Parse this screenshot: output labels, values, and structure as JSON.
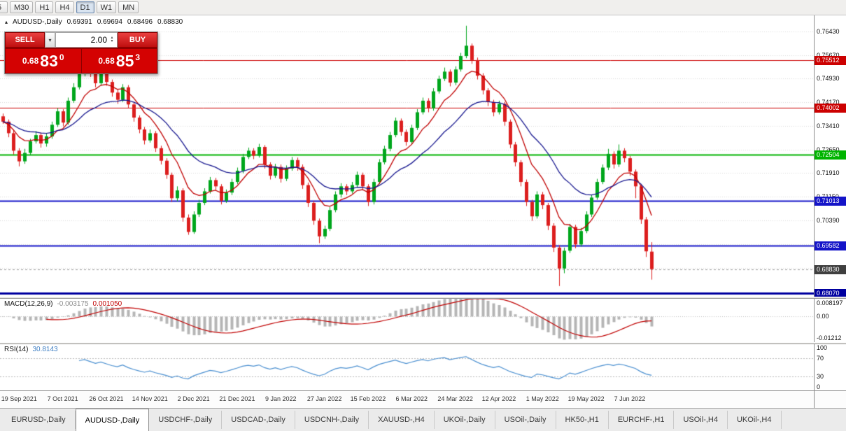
{
  "colors": {
    "bull": "#00a61c",
    "bear": "#dc1e1e",
    "ma_fast": "#c00000",
    "ma_slow": "#17178f",
    "macd_hist": "#b5b5b5",
    "macd_signal": "#c00000",
    "rsi_line": "#4a8fd0",
    "grid": "#dadada",
    "current_chip": "#3f3f3f"
  },
  "toolbar": {
    "timeframes": [
      {
        "label": "5",
        "active": false
      },
      {
        "label": "M30",
        "active": false
      },
      {
        "label": "H1",
        "active": false
      },
      {
        "label": "H4",
        "active": false
      },
      {
        "label": "D1",
        "active": true
      },
      {
        "label": "W1",
        "active": false
      },
      {
        "label": "MN",
        "active": false
      }
    ]
  },
  "symbol_line": {
    "icon": "▴",
    "title": "AUDUSD-,Daily",
    "open": "0.69391",
    "high": "0.69694",
    "low": "0.68496",
    "close": "0.68830"
  },
  "trade_panel": {
    "sell_label": "SELL",
    "buy_label": "BUY",
    "volume": "2.00",
    "sell_price_prefix": "0.68",
    "sell_price_big": "83",
    "sell_price_sup": "0",
    "buy_price_prefix": "0.68",
    "buy_price_big": "85",
    "buy_price_sup": "3"
  },
  "price_axis": {
    "ticks": [
      "0.76430",
      "0.75670",
      "0.74930",
      "0.74170",
      "0.73410",
      "0.72650",
      "0.71910",
      "0.71150",
      "0.70390"
    ]
  },
  "macd": {
    "label": "MACD(12,26,9)",
    "main_value": "-0.003175",
    "signal_value": "0.001050",
    "axis_labels": [
      "0.008197",
      "0.00",
      "-0.01212"
    ],
    "range": [
      -0.01212,
      0.008197
    ],
    "fast": 12,
    "slow": 26,
    "signal": 9
  },
  "rsi": {
    "label": "RSI(14)",
    "value": "30.8143",
    "axis_labels": [
      "100",
      "70",
      "30",
      "0"
    ],
    "levels": [
      70,
      30
    ],
    "period": 14
  },
  "date_axis": {
    "labels": [
      "19 Sep 2021",
      "7 Oct 2021",
      "26 Oct 2021",
      "14 Nov 2021",
      "2 Dec 2021",
      "21 Dec 2021",
      "9 Jan 2022",
      "27 Jan 2022",
      "15 Feb 2022",
      "6 Mar 2022",
      "24 Mar 2022",
      "12 Apr 2022",
      "1 May 2022",
      "19 May 2022",
      "7 Jun 2022"
    ]
  },
  "tabs": [
    {
      "label": "EURUSD-,Daily",
      "active": false
    },
    {
      "label": "AUDUSD-,Daily",
      "active": true
    },
    {
      "label": "USDCHF-,Daily",
      "active": false
    },
    {
      "label": "USDCAD-,Daily",
      "active": false
    },
    {
      "label": "USDCNH-,Daily",
      "active": false
    },
    {
      "label": "XAUUSD-,H4",
      "active": false
    },
    {
      "label": "UKOil-,Daily",
      "active": false
    },
    {
      "label": "USOil-,Daily",
      "active": false
    },
    {
      "label": "HK50-,H1",
      "active": false
    },
    {
      "label": "EURCHF-,H1",
      "active": false
    },
    {
      "label": "USOil-,H4",
      "active": false
    },
    {
      "label": "UKOil-,H4",
      "active": false
    }
  ],
  "chart_data": {
    "type": "candlestick",
    "symbol": "AUDUSD-",
    "timeframe": "Daily",
    "y_range": [
      0.6795,
      0.7695
    ],
    "gridlines": [
      0.7643,
      0.7567,
      0.7493,
      0.7417,
      0.7341,
      0.7265,
      0.7191,
      0.7115,
      0.7039,
      0.6963,
      0.6887
    ],
    "ma_fast": 8,
    "ma_slow": 21,
    "current_price": 0.6883,
    "current_label": "0.68830",
    "hlines": [
      {
        "price": 0.75512,
        "label": "0.75512",
        "color": "#cc0000",
        "width": 1
      },
      {
        "price": 0.74002,
        "label": "0.74002",
        "color": "#cc0000",
        "width": 1
      },
      {
        "price": 0.72504,
        "label": "0.72504",
        "color": "#00b400",
        "width": 2
      },
      {
        "price": 0.71013,
        "label": "0.71013",
        "color": "#1414c8",
        "width": 2
      },
      {
        "price": 0.69582,
        "label": "0.69582",
        "color": "#1414c8",
        "width": 2
      },
      {
        "price": 0.6807,
        "label": "0.68070",
        "color": "#0000a0",
        "width": 3
      }
    ],
    "date_tick_indices": [
      3,
      11,
      19,
      27,
      35,
      43,
      51,
      59,
      67,
      75,
      83,
      91,
      99,
      107,
      115
    ],
    "candles": [
      [
        0.7372,
        0.7381,
        0.7348,
        0.7355
      ],
      [
        0.7355,
        0.7362,
        0.7305,
        0.7318
      ],
      [
        0.7318,
        0.733,
        0.725,
        0.7262
      ],
      [
        0.7262,
        0.727,
        0.7212,
        0.7228
      ],
      [
        0.7228,
        0.7268,
        0.722,
        0.7255
      ],
      [
        0.7255,
        0.73,
        0.7248,
        0.7292
      ],
      [
        0.7292,
        0.7325,
        0.7285,
        0.7312
      ],
      [
        0.7312,
        0.732,
        0.7272,
        0.7285
      ],
      [
        0.7285,
        0.7318,
        0.7275,
        0.7308
      ],
      [
        0.7308,
        0.7355,
        0.73,
        0.7345
      ],
      [
        0.7345,
        0.7398,
        0.7338,
        0.7388
      ],
      [
        0.7388,
        0.7395,
        0.734,
        0.7352
      ],
      [
        0.7352,
        0.7432,
        0.7345,
        0.7422
      ],
      [
        0.7422,
        0.7478,
        0.7415,
        0.7465
      ],
      [
        0.7465,
        0.752,
        0.7458,
        0.7508
      ],
      [
        0.7508,
        0.7556,
        0.75,
        0.7546
      ],
      [
        0.7546,
        0.7552,
        0.7498,
        0.7512
      ],
      [
        0.7512,
        0.752,
        0.7465,
        0.7478
      ],
      [
        0.7478,
        0.7528,
        0.747,
        0.7515
      ],
      [
        0.7515,
        0.7522,
        0.747,
        0.7482
      ],
      [
        0.7482,
        0.749,
        0.7435,
        0.7448
      ],
      [
        0.7448,
        0.7458,
        0.7412,
        0.7425
      ],
      [
        0.7425,
        0.7475,
        0.7418,
        0.7465
      ],
      [
        0.7465,
        0.7472,
        0.7398,
        0.741
      ],
      [
        0.741,
        0.7418,
        0.7355,
        0.7368
      ],
      [
        0.7368,
        0.7375,
        0.7318,
        0.733
      ],
      [
        0.733,
        0.7338,
        0.7282,
        0.7295
      ],
      [
        0.7295,
        0.733,
        0.7288,
        0.7318
      ],
      [
        0.7318,
        0.7325,
        0.7258,
        0.727
      ],
      [
        0.727,
        0.7278,
        0.7218,
        0.723
      ],
      [
        0.723,
        0.7238,
        0.7172,
        0.7185
      ],
      [
        0.7185,
        0.7192,
        0.7098,
        0.711
      ],
      [
        0.711,
        0.7148,
        0.71,
        0.7135
      ],
      [
        0.7135,
        0.7142,
        0.7035,
        0.7048
      ],
      [
        0.7048,
        0.7058,
        0.6993,
        0.7002
      ],
      [
        0.7002,
        0.7068,
        0.6996,
        0.7058
      ],
      [
        0.7058,
        0.7105,
        0.705,
        0.7095
      ],
      [
        0.7095,
        0.7142,
        0.7088,
        0.7132
      ],
      [
        0.7132,
        0.7178,
        0.7125,
        0.7168
      ],
      [
        0.7168,
        0.7175,
        0.7136,
        0.7148
      ],
      [
        0.7148,
        0.7155,
        0.709,
        0.7102
      ],
      [
        0.7102,
        0.7138,
        0.7095,
        0.7128
      ],
      [
        0.7128,
        0.7172,
        0.712,
        0.7162
      ],
      [
        0.7162,
        0.7208,
        0.7155,
        0.7198
      ],
      [
        0.7198,
        0.7252,
        0.719,
        0.7242
      ],
      [
        0.7242,
        0.7272,
        0.7235,
        0.7262
      ],
      [
        0.7262,
        0.727,
        0.7235,
        0.7246
      ],
      [
        0.7246,
        0.7284,
        0.724,
        0.7274
      ],
      [
        0.7274,
        0.728,
        0.7205,
        0.7218
      ],
      [
        0.7218,
        0.7225,
        0.717,
        0.7182
      ],
      [
        0.7182,
        0.722,
        0.7175,
        0.721
      ],
      [
        0.721,
        0.7218,
        0.716,
        0.7172
      ],
      [
        0.7172,
        0.7215,
        0.7165,
        0.7205
      ],
      [
        0.7205,
        0.7242,
        0.7198,
        0.7232
      ],
      [
        0.7232,
        0.724,
        0.7198,
        0.721
      ],
      [
        0.721,
        0.7218,
        0.714,
        0.7152
      ],
      [
        0.7152,
        0.716,
        0.7082,
        0.7095
      ],
      [
        0.7095,
        0.7102,
        0.7025,
        0.7038
      ],
      [
        0.7038,
        0.7045,
        0.6966,
        0.6988
      ],
      [
        0.6988,
        0.7022,
        0.698,
        0.7012
      ],
      [
        0.7012,
        0.7082,
        0.7005,
        0.7072
      ],
      [
        0.7072,
        0.7132,
        0.7065,
        0.7122
      ],
      [
        0.7122,
        0.7158,
        0.7112,
        0.7148
      ],
      [
        0.7148,
        0.7155,
        0.712,
        0.7132
      ],
      [
        0.7132,
        0.7162,
        0.7125,
        0.7152
      ],
      [
        0.7152,
        0.7195,
        0.7145,
        0.7185
      ],
      [
        0.7185,
        0.7192,
        0.7135,
        0.7148
      ],
      [
        0.7148,
        0.7155,
        0.7085,
        0.7098
      ],
      [
        0.7098,
        0.7172,
        0.709,
        0.7162
      ],
      [
        0.7162,
        0.7235,
        0.7155,
        0.7225
      ],
      [
        0.7225,
        0.7278,
        0.7218,
        0.7268
      ],
      [
        0.7268,
        0.7322,
        0.726,
        0.7312
      ],
      [
        0.7312,
        0.7368,
        0.7305,
        0.7358
      ],
      [
        0.7358,
        0.7365,
        0.731,
        0.7322
      ],
      [
        0.7322,
        0.733,
        0.7278,
        0.729
      ],
      [
        0.729,
        0.7345,
        0.7282,
        0.7335
      ],
      [
        0.7335,
        0.7395,
        0.7328,
        0.7385
      ],
      [
        0.7385,
        0.7432,
        0.7378,
        0.7422
      ],
      [
        0.7422,
        0.743,
        0.7385,
        0.7398
      ],
      [
        0.7398,
        0.7462,
        0.739,
        0.7452
      ],
      [
        0.7452,
        0.7502,
        0.7445,
        0.7492
      ],
      [
        0.7492,
        0.7528,
        0.7485,
        0.7515
      ],
      [
        0.7515,
        0.7522,
        0.7468,
        0.748
      ],
      [
        0.748,
        0.7532,
        0.7472,
        0.7522
      ],
      [
        0.7522,
        0.7575,
        0.7515,
        0.7565
      ],
      [
        0.7565,
        0.7662,
        0.7558,
        0.7598
      ],
      [
        0.7598,
        0.7605,
        0.754,
        0.7552
      ],
      [
        0.7552,
        0.756,
        0.749,
        0.7502
      ],
      [
        0.7502,
        0.751,
        0.7442,
        0.7455
      ],
      [
        0.7455,
        0.7462,
        0.7405,
        0.7418
      ],
      [
        0.7418,
        0.7425,
        0.7372,
        0.7385
      ],
      [
        0.7385,
        0.7422,
        0.7378,
        0.7412
      ],
      [
        0.7412,
        0.7418,
        0.7342,
        0.7355
      ],
      [
        0.7355,
        0.7362,
        0.727,
        0.7282
      ],
      [
        0.7282,
        0.729,
        0.7212,
        0.7225
      ],
      [
        0.7225,
        0.7232,
        0.7148,
        0.7162
      ],
      [
        0.7162,
        0.717,
        0.7085,
        0.7098
      ],
      [
        0.7098,
        0.7105,
        0.7038,
        0.7052
      ],
      [
        0.7052,
        0.7132,
        0.7045,
        0.7122
      ],
      [
        0.7122,
        0.713,
        0.7075,
        0.7088
      ],
      [
        0.7088,
        0.7095,
        0.7008,
        0.7022
      ],
      [
        0.7022,
        0.703,
        0.6938,
        0.6952
      ],
      [
        0.6952,
        0.696,
        0.6829,
        0.6885
      ],
      [
        0.6885,
        0.6952,
        0.687,
        0.6942
      ],
      [
        0.6942,
        0.7028,
        0.6935,
        0.7018
      ],
      [
        0.7018,
        0.7025,
        0.695,
        0.6962
      ],
      [
        0.6962,
        0.7015,
        0.6955,
        0.7005
      ],
      [
        0.7005,
        0.7068,
        0.6998,
        0.7058
      ],
      [
        0.7058,
        0.7122,
        0.705,
        0.7112
      ],
      [
        0.7112,
        0.7172,
        0.7105,
        0.7162
      ],
      [
        0.7162,
        0.7218,
        0.7155,
        0.7208
      ],
      [
        0.7208,
        0.7268,
        0.72,
        0.7252
      ],
      [
        0.7252,
        0.726,
        0.7205,
        0.7218
      ],
      [
        0.7218,
        0.7282,
        0.721,
        0.7262
      ],
      [
        0.7262,
        0.727,
        0.7225,
        0.7238
      ],
      [
        0.7238,
        0.7245,
        0.7182,
        0.7195
      ],
      [
        0.7195,
        0.7202,
        0.711,
        0.7148
      ],
      [
        0.7148,
        0.7155,
        0.7028,
        0.7042
      ],
      [
        0.7042,
        0.705,
        0.6922,
        0.694
      ],
      [
        0.69391,
        0.69694,
        0.68496,
        0.6883
      ]
    ]
  }
}
